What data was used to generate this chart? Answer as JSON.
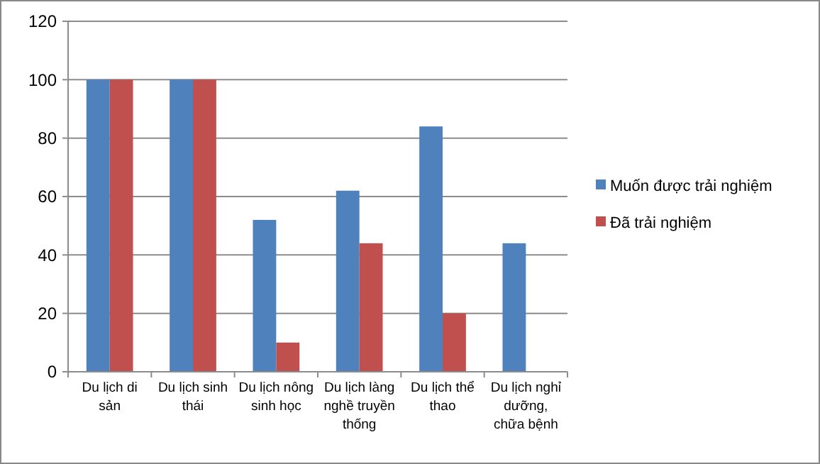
{
  "chart_data": {
    "type": "bar",
    "categories": [
      "Du lịch di sản",
      "Du lịch sinh thái",
      "Du lịch nông sinh học",
      "Du lịch làng nghề truyền thống",
      "Du lịch thể thao",
      "Du lịch nghỉ dưỡng, chữa bệnh"
    ],
    "series": [
      {
        "name": "Muốn được trải nghiệm",
        "color": "#4f81bd",
        "values": [
          100,
          100,
          52,
          62,
          84,
          44
        ]
      },
      {
        "name": "Đã trải nghiệm",
        "color": "#c0504d",
        "values": [
          100,
          100,
          10,
          44,
          20,
          0
        ]
      }
    ],
    "ylim": [
      0,
      120
    ],
    "yticks": [
      0,
      20,
      40,
      60,
      80,
      100,
      120
    ],
    "grid": "y",
    "legend": "right"
  }
}
